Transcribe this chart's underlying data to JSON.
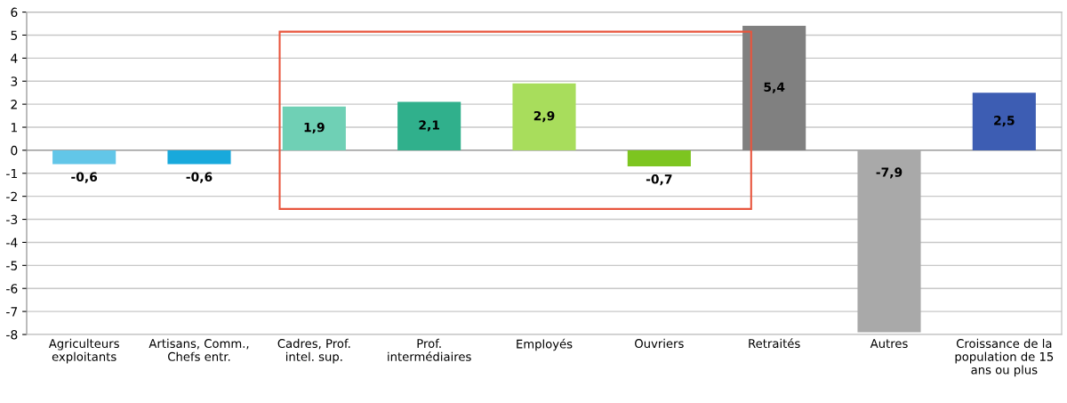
{
  "chart_data": {
    "type": "bar",
    "categories": [
      "Agriculteurs\nexploitants",
      "Artisans, Comm.,\nChefs entr.",
      "Cadres, Prof.\nintel. sup.",
      "Prof.\nintermédiaires",
      "Employés",
      "Ouvriers",
      "Retraités",
      "Autres",
      "Croissance de la\npopulation de 15\nans ou plus"
    ],
    "values": [
      -0.6,
      -0.6,
      1.9,
      2.1,
      2.9,
      -0.7,
      5.4,
      -7.9,
      2.5
    ],
    "colors": [
      "#62c6e8",
      "#18a9dc",
      "#6fd0b5",
      "#30b08c",
      "#a8dd5c",
      "#7dc520",
      "#808080",
      "#a9a9a9",
      "#3d5db3"
    ],
    "value_labels": [
      "-0,6",
      "-0,6",
      "1,9",
      "2,1",
      "2,9",
      "-0,7",
      "5,4",
      "-7,9",
      "2,5"
    ],
    "ylim": [
      -8,
      6
    ],
    "yticks": [
      -8,
      -7,
      -6,
      -5,
      -4,
      -3,
      -2,
      -1,
      0,
      1,
      2,
      3,
      4,
      5,
      6
    ],
    "grid": "y"
  }
}
